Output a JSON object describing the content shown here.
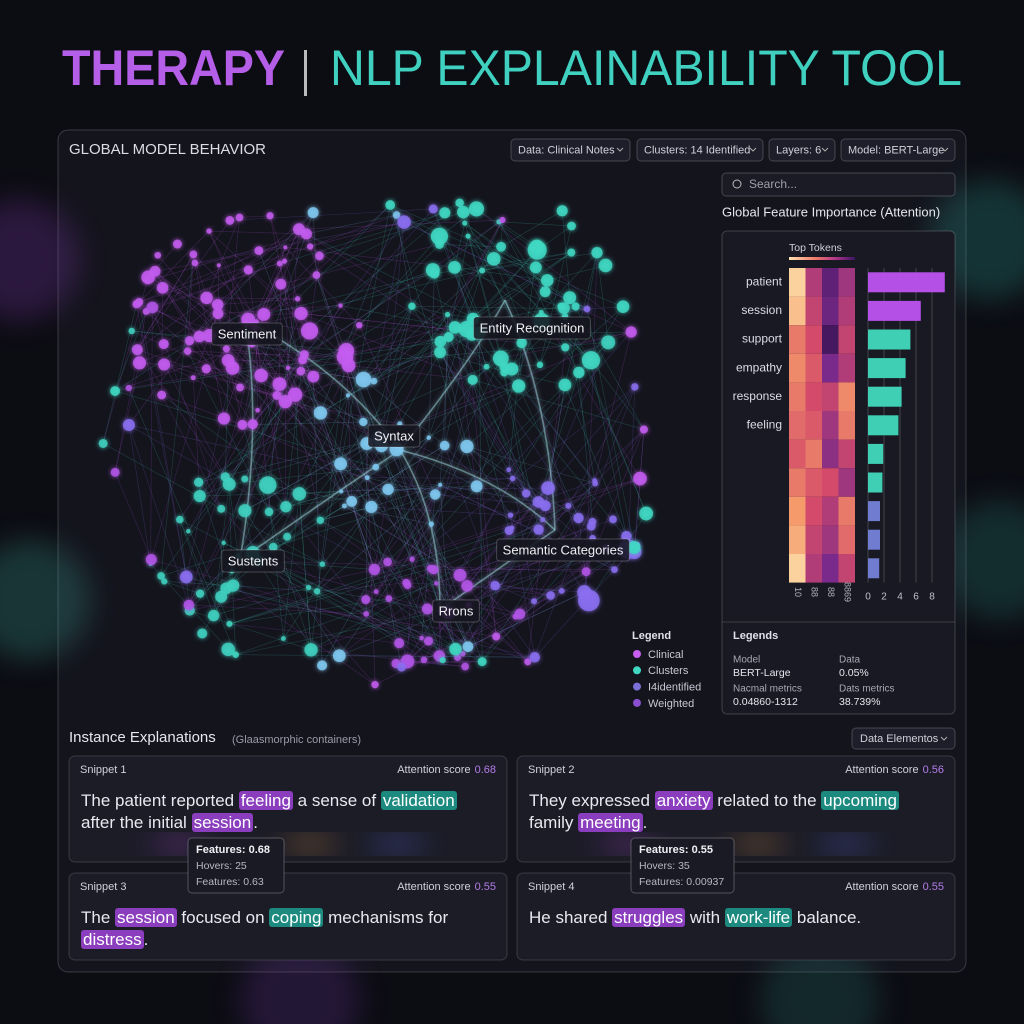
{
  "header": {
    "title_left": "THERAPY",
    "title_right": "NLP EXPLAINABILITY TOOL"
  },
  "global_panel": {
    "title": "GLOBAL MODEL BEHAVIOR",
    "dropdowns": [
      "Data: Clinical Notes",
      "Clusters: 14 Identified",
      "Layers: 6",
      "Model: BERT-Large"
    ],
    "search_placeholder": "Search..."
  },
  "network": {
    "labels": [
      "Sentiment",
      "Entity Recognition",
      "Syntax",
      "Sustents",
      "Semantic Categories",
      "Rrons"
    ],
    "legend": {
      "title": "Legend",
      "items": [
        {
          "name": "Clinical",
          "color": "#c65ff0"
        },
        {
          "name": "Clusters",
          "color": "#40d6c0"
        },
        {
          "name": "I4identified",
          "color": "#7b6fd8"
        },
        {
          "name": "Weighted",
          "color": "#8a4fd0"
        }
      ]
    }
  },
  "chart_data": {
    "type": "bar",
    "orientation": "horizontal",
    "title": "Global Feature Importance (Attention)",
    "categories": [
      "patient",
      "session",
      "support",
      "empathy",
      "response",
      "feeling",
      null,
      null,
      null,
      null,
      null
    ],
    "values": [
      9.6,
      6.6,
      5.3,
      4.7,
      4.2,
      3.8,
      1.9,
      1.8,
      1.5,
      1.5,
      1.4
    ],
    "colors": [
      "#b450e6",
      "#b450e6",
      "#3ecfb5",
      "#3ecfb5",
      "#3ecfb5",
      "#3ecfb5",
      "#3ecfb5",
      "#3ecfb5",
      "#6f7ccf",
      "#6f7ccf",
      "#6f7ccf"
    ],
    "xlim": [
      0,
      10
    ],
    "xticks": [
      0,
      2,
      4,
      6,
      8
    ],
    "grid": true,
    "heatmap": {
      "title": "Top Tokens",
      "columns": [
        "10",
        "88",
        "88",
        "8869"
      ],
      "values": [
        [
          0.95,
          0.45,
          0.2,
          0.4
        ],
        [
          0.9,
          0.5,
          0.25,
          0.45
        ],
        [
          0.7,
          0.55,
          0.1,
          0.5
        ],
        [
          0.75,
          0.6,
          0.3,
          0.45
        ],
        [
          0.7,
          0.55,
          0.5,
          0.75
        ],
        [
          0.65,
          0.6,
          0.4,
          0.7
        ],
        [
          0.6,
          0.7,
          0.35,
          0.5
        ],
        [
          0.7,
          0.6,
          0.55,
          0.4
        ],
        [
          0.8,
          0.55,
          0.45,
          0.7
        ],
        [
          0.85,
          0.5,
          0.4,
          0.65
        ],
        [
          0.95,
          0.45,
          0.3,
          0.5
        ]
      ]
    }
  },
  "legends_panel": {
    "title": "Legends",
    "items": [
      {
        "label": "Model",
        "value": "BERT-Large"
      },
      {
        "label": "Data",
        "value": "0.05%"
      },
      {
        "label": "Nacmal metrics",
        "value": "0.04860-1312"
      },
      {
        "label": "Dats metrics",
        "value": "38.739%"
      }
    ]
  },
  "instances": {
    "title": "Instance Explanations",
    "subtitle": "(Glaasmorphic containers)",
    "dropdown": "Data Elementos",
    "score_label": "Attention score",
    "highlight_colors": {
      "purple": "#8a3dbd",
      "teal": "#1d8a80"
    },
    "snippets": [
      {
        "title": "Snippet 1",
        "score": 0.68,
        "segments": [
          {
            "text": "The patient reported "
          },
          {
            "text": "feeling",
            "highlight": "purple"
          },
          {
            "text": " a sense of "
          },
          {
            "text": "validation",
            "highlight": "teal"
          },
          {
            "text": " after the initial "
          },
          {
            "text": "session",
            "highlight": "purple"
          },
          {
            "text": "."
          }
        ]
      },
      {
        "title": "Snippet 2",
        "score": 0.56,
        "segments": [
          {
            "text": "They expressed "
          },
          {
            "text": "anxiety",
            "highlight": "purple"
          },
          {
            "text": " related to the "
          },
          {
            "text": "upcoming",
            "highlight": "teal"
          },
          {
            "text": " family "
          },
          {
            "text": "meeting",
            "highlight": "purple"
          },
          {
            "text": "."
          }
        ]
      },
      {
        "title": "Snippet 3",
        "score": 0.55,
        "segments": [
          {
            "text": "The "
          },
          {
            "text": "session",
            "highlight": "purple"
          },
          {
            "text": " focused on "
          },
          {
            "text": "coping",
            "highlight": "teal"
          },
          {
            "text": " mechanisms for "
          },
          {
            "text": "distress",
            "highlight": "purple"
          },
          {
            "text": "."
          }
        ]
      },
      {
        "title": "Snippet 4",
        "score": 0.55,
        "segments": [
          {
            "text": "He shared "
          },
          {
            "text": "struggles",
            "highlight": "purple"
          },
          {
            "text": " with "
          },
          {
            "text": "work-life",
            "highlight": "teal"
          },
          {
            "text": " balance."
          }
        ]
      }
    ]
  },
  "tooltips": [
    {
      "lines": [
        "Features: 0.68",
        "Hovers: 25",
        "Features: 0.63"
      ]
    },
    {
      "lines": [
        "Features: 0.55",
        "Hovers: 35",
        "Features: 0.00937"
      ]
    }
  ]
}
